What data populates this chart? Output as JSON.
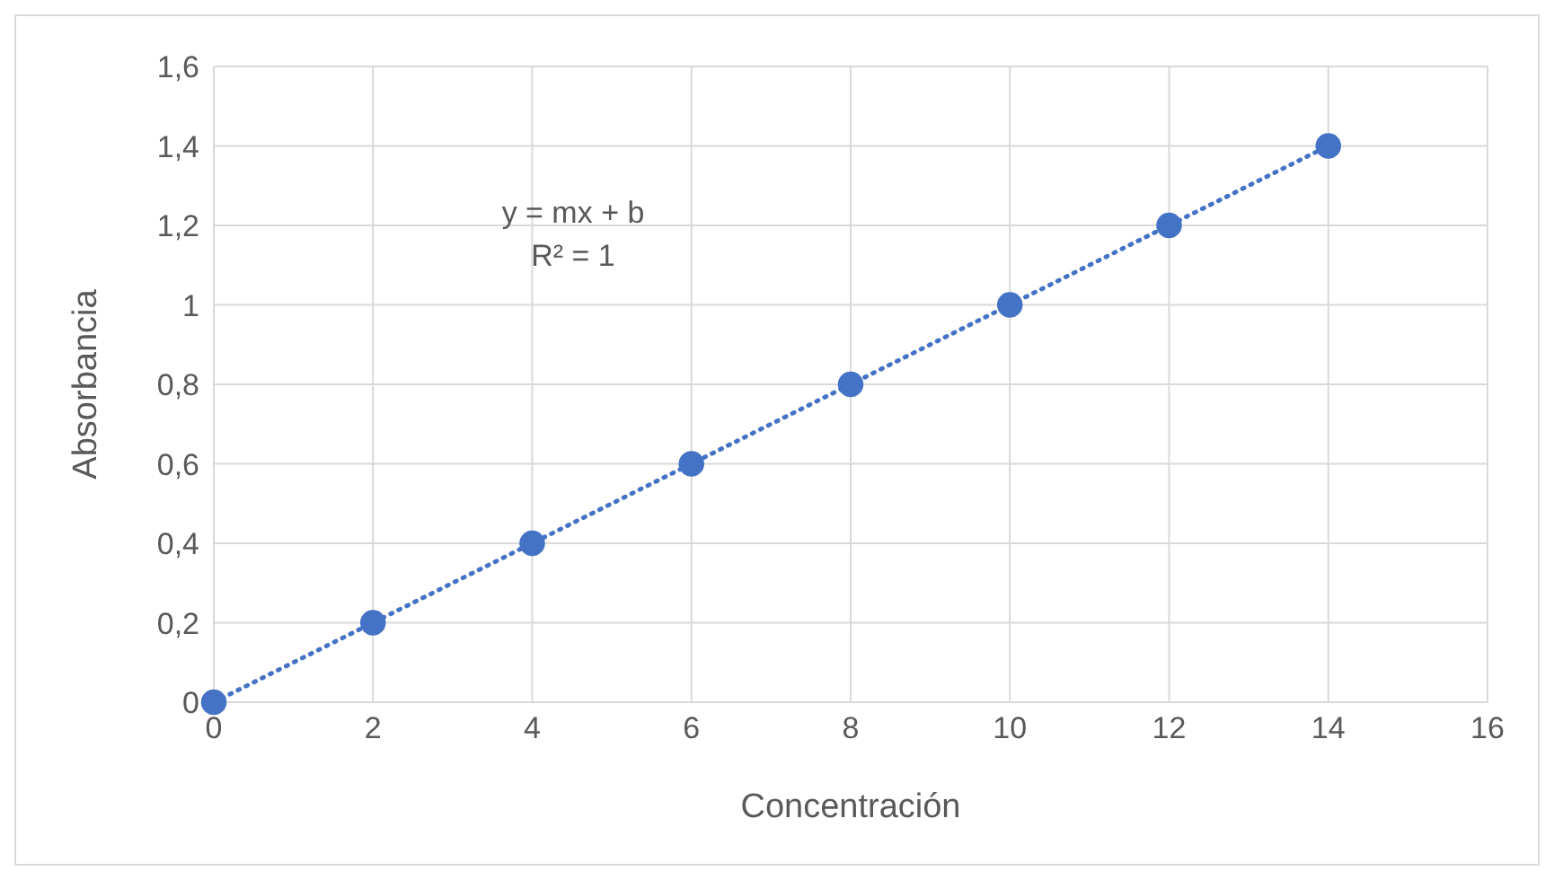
{
  "chart_data": {
    "type": "scatter",
    "xlabel": "Concentración",
    "ylabel": "Absorbancia",
    "annotations": [
      "y = mx + b",
      "R² = 1"
    ],
    "xlim": [
      0,
      16
    ],
    "xticks": [
      0,
      2,
      4,
      6,
      8,
      10,
      12,
      14,
      16
    ],
    "ylim": [
      0,
      1.6
    ],
    "yticks": [
      0,
      {
        "value": 0.2,
        "label": "0,2"
      },
      {
        "value": 0.4,
        "label": "0,4"
      },
      {
        "value": 0.6,
        "label": "0,6"
      },
      {
        "value": 0.8,
        "label": "0,8"
      },
      1,
      {
        "value": 1.2,
        "label": "1,2"
      },
      {
        "value": 1.4,
        "label": "1,4"
      },
      {
        "value": 1.6,
        "label": "1,6"
      }
    ],
    "grid": true,
    "legend": false,
    "marker": "circle",
    "series": [
      {
        "color": "#4472c4",
        "x": [
          0,
          2,
          4,
          6,
          8,
          10,
          12,
          14
        ],
        "values": [
          0,
          0.2,
          0.4,
          0.6,
          0.8,
          1,
          1.2,
          1.4
        ]
      },
      {
        "type": "line",
        "color": "#4472c4",
        "line_style": "dotted",
        "marker": "none",
        "x": [
          0,
          14
        ],
        "values": [
          0,
          1.4
        ]
      }
    ]
  }
}
